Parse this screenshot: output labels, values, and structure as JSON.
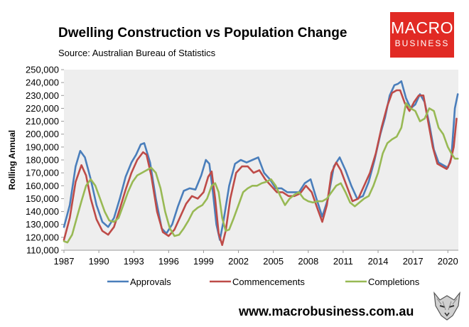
{
  "chart_data": {
    "type": "line",
    "title": "Dwelling Construction vs Population Change",
    "subtitle": "Source: Australian Bureau of Statistics",
    "xlabel": "",
    "ylabel": "Rolling Annual",
    "xlim": [
      1987,
      2020.9
    ],
    "ylim": [
      110000,
      250000
    ],
    "x_ticks": [
      1987,
      1990,
      1993,
      1996,
      1999,
      2002,
      2005,
      2008,
      2011,
      2014,
      2017,
      2020
    ],
    "y_ticks": [
      110000,
      120000,
      130000,
      140000,
      150000,
      160000,
      170000,
      180000,
      190000,
      200000,
      210000,
      220000,
      230000,
      240000,
      250000
    ],
    "y_tick_labels": [
      "110,000",
      "120,000",
      "130,000",
      "140,000",
      "150,000",
      "160,000",
      "170,000",
      "180,000",
      "190,000",
      "200,000",
      "210,000",
      "220,000",
      "230,000",
      "240,000",
      "250,000"
    ],
    "legend_position": "bottom",
    "series": [
      {
        "name": "Approvals",
        "color": "#4a7ebb",
        "x": [
          1987.0,
          1987.5,
          1988.0,
          1988.4,
          1988.8,
          1989.3,
          1989.8,
          1990.3,
          1990.8,
          1991.3,
          1991.8,
          1992.3,
          1992.8,
          1993.2,
          1993.6,
          1993.9,
          1994.4,
          1994.9,
          1995.4,
          1995.8,
          1996.3,
          1996.8,
          1997.3,
          1997.8,
          1998.3,
          1998.8,
          1999.2,
          1999.5,
          1999.8,
          2000.1,
          2000.4,
          2000.7,
          2001.2,
          2001.7,
          2002.2,
          2002.7,
          2003.2,
          2003.7,
          2004.2,
          2004.7,
          2005.2,
          2005.7,
          2006.2,
          2006.7,
          2007.2,
          2007.7,
          2008.2,
          2008.7,
          2009.2,
          2009.7,
          2010.2,
          2010.7,
          2011.2,
          2011.7,
          2012.2,
          2012.7,
          2013.2,
          2013.7,
          2014.2,
          2014.6,
          2015.0,
          2015.4,
          2015.7,
          2016.0,
          2016.4,
          2016.8,
          2017.2,
          2017.6,
          2018.0,
          2018.4,
          2018.8,
          2019.2,
          2019.6,
          2020.0,
          2020.3,
          2020.6,
          2020.85
        ],
        "values": [
          128000,
          145000,
          175000,
          187000,
          182000,
          165000,
          145000,
          132000,
          128000,
          135000,
          150000,
          167000,
          178000,
          184000,
          192000,
          193000,
          178000,
          150000,
          127000,
          123000,
          130000,
          144000,
          156000,
          158000,
          157000,
          168000,
          180000,
          177000,
          155000,
          130000,
          118000,
          132000,
          160000,
          177000,
          180000,
          178000,
          180000,
          182000,
          170000,
          165000,
          158000,
          158000,
          155000,
          155000,
          155000,
          162000,
          165000,
          150000,
          136000,
          150000,
          175000,
          182000,
          172000,
          160000,
          150000,
          152000,
          163000,
          180000,
          200000,
          213000,
          230000,
          238000,
          239000,
          241000,
          228000,
          220000,
          223000,
          231000,
          225000,
          208000,
          188000,
          178000,
          176000,
          174000,
          182000,
          220000,
          231000
        ]
      },
      {
        "name": "Commencements",
        "color": "#be4b48",
        "x": [
          1987.0,
          1987.5,
          1988.0,
          1988.5,
          1988.9,
          1989.3,
          1989.8,
          1990.3,
          1990.8,
          1991.3,
          1991.8,
          1992.3,
          1992.8,
          1993.3,
          1993.8,
          1994.1,
          1994.5,
          1995.0,
          1995.5,
          1996.0,
          1996.5,
          1997.0,
          1997.5,
          1998.0,
          1998.5,
          1999.0,
          1999.4,
          1999.7,
          2000.0,
          2000.3,
          2000.6,
          2000.9,
          2001.3,
          2001.8,
          2002.3,
          2002.8,
          2003.3,
          2003.8,
          2004.3,
          2004.8,
          2005.3,
          2005.8,
          2006.3,
          2006.8,
          2007.3,
          2007.8,
          2008.3,
          2008.8,
          2009.2,
          2009.6,
          2010.0,
          2010.4,
          2010.8,
          2011.3,
          2011.8,
          2012.3,
          2012.8,
          2013.3,
          2013.8,
          2014.3,
          2014.8,
          2015.2,
          2015.6,
          2015.9,
          2016.3,
          2016.7,
          2017.1,
          2017.5,
          2017.9,
          2018.3,
          2018.7,
          2019.1,
          2019.5,
          2019.9,
          2020.2,
          2020.5,
          2020.75
        ],
        "values": [
          118000,
          135000,
          163000,
          176000,
          168000,
          150000,
          134000,
          125000,
          122000,
          128000,
          142000,
          157000,
          170000,
          180000,
          186000,
          184000,
          168000,
          140000,
          124000,
          121000,
          126000,
          136000,
          146000,
          152000,
          150000,
          155000,
          167000,
          171000,
          150000,
          123000,
          114000,
          125000,
          150000,
          170000,
          175000,
          175000,
          170000,
          172000,
          165000,
          160000,
          155000,
          155000,
          152000,
          152000,
          154000,
          160000,
          155000,
          142000,
          132000,
          145000,
          170000,
          178000,
          172000,
          160000,
          148000,
          150000,
          160000,
          170000,
          185000,
          205000,
          222000,
          232000,
          234000,
          234000,
          224000,
          218000,
          225000,
          230000,
          230000,
          210000,
          190000,
          177000,
          175000,
          173000,
          178000,
          190000,
          212000
        ]
      },
      {
        "name": "Completions",
        "color": "#98b954",
        "x": [
          1987.0,
          1987.3,
          1987.7,
          1988.1,
          1988.5,
          1988.9,
          1989.3,
          1989.7,
          1990.1,
          1990.5,
          1990.9,
          1991.3,
          1991.7,
          1992.1,
          1992.5,
          1992.9,
          1993.3,
          1993.7,
          1994.1,
          1994.5,
          1994.9,
          1995.3,
          1995.7,
          1996.1,
          1996.5,
          1996.9,
          1997.3,
          1997.7,
          1998.1,
          1998.5,
          1998.9,
          1999.3,
          1999.7,
          2000.0,
          2000.3,
          2000.6,
          2000.9,
          2001.2,
          2001.6,
          2002.0,
          2002.4,
          2002.8,
          2003.2,
          2003.6,
          2004.0,
          2004.4,
          2004.8,
          2005.2,
          2005.6,
          2006.0,
          2006.4,
          2006.8,
          2007.2,
          2007.6,
          2008.0,
          2008.4,
          2008.8,
          2009.2,
          2009.6,
          2010.0,
          2010.4,
          2010.8,
          2011.2,
          2011.6,
          2012.0,
          2012.4,
          2012.8,
          2013.2,
          2013.6,
          2014.0,
          2014.4,
          2014.8,
          2015.2,
          2015.6,
          2016.0,
          2016.4,
          2016.8,
          2017.2,
          2017.6,
          2018.0,
          2018.4,
          2018.8,
          2019.2,
          2019.6,
          2020.0,
          2020.3,
          2020.6,
          2020.85
        ],
        "values": [
          117000,
          116000,
          122000,
          135000,
          148000,
          160000,
          165000,
          160000,
          150000,
          140000,
          133000,
          132000,
          135000,
          145000,
          155000,
          163000,
          168000,
          170000,
          172000,
          174000,
          170000,
          158000,
          140000,
          127000,
          121000,
          122000,
          127000,
          133000,
          140000,
          143000,
          145000,
          150000,
          160000,
          162000,
          155000,
          135000,
          125000,
          126000,
          135000,
          145000,
          155000,
          158000,
          160000,
          160000,
          162000,
          163000,
          165000,
          160000,
          152000,
          145000,
          150000,
          153000,
          155000,
          150000,
          148000,
          147000,
          148000,
          148000,
          150000,
          155000,
          160000,
          162000,
          155000,
          147000,
          144000,
          147000,
          150000,
          152000,
          160000,
          170000,
          185000,
          193000,
          196000,
          198000,
          205000,
          224000,
          220000,
          218000,
          210000,
          212000,
          220000,
          218000,
          205000,
          200000,
          190000,
          185000,
          181000,
          181000
        ]
      }
    ]
  },
  "logo": {
    "top": "MACRO",
    "bottom": "BUSINESS"
  },
  "footer": {
    "url": "www.macrobusiness.com.au"
  }
}
